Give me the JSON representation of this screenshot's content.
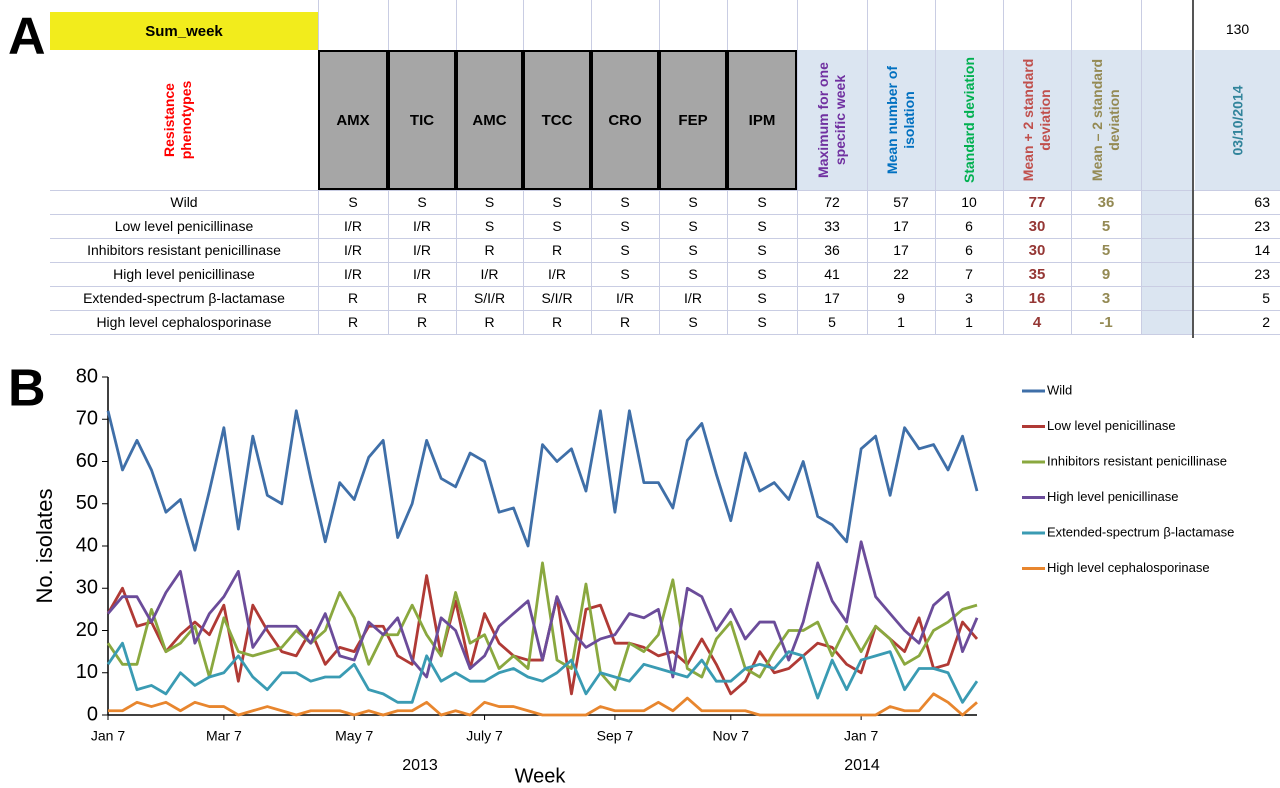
{
  "panels": [
    "A",
    "B"
  ],
  "table": {
    "corner_label": "Sum_week",
    "corner_value": 130,
    "row_header": "Resistance phenotypes",
    "antibiotics": [
      "AMX",
      "TIC",
      "AMC",
      "TCC",
      "CRO",
      "FEP",
      "IPM"
    ],
    "stats": [
      {
        "label": "Maximum for one specific week",
        "color": "#7030a0"
      },
      {
        "label": "Mean number of isolation",
        "color": "#0070c0"
      },
      {
        "label": "Standard deviation",
        "color": "#00b050"
      },
      {
        "label": "Mean + 2 standard deviation",
        "color": "#c0504d",
        "value_color": "#953735"
      },
      {
        "label": "Mean – 2 standard deviation",
        "color": "#948a54",
        "value_color": "#948a54"
      }
    ],
    "date_column": {
      "label": "03/10/2014",
      "color": "#31849b"
    },
    "rows": [
      {
        "phenotype": "Wild",
        "profile": [
          "S",
          "S",
          "S",
          "S",
          "S",
          "S",
          "S"
        ],
        "stats": [
          72,
          57,
          10,
          77,
          36
        ],
        "count": 63
      },
      {
        "phenotype": "Low level penicillinase",
        "profile": [
          "I/R",
          "I/R",
          "S",
          "S",
          "S",
          "S",
          "S"
        ],
        "stats": [
          33,
          17,
          6,
          30,
          5
        ],
        "count": 23
      },
      {
        "phenotype": "Inhibitors resistant penicillinase",
        "profile": [
          "I/R",
          "I/R",
          "R",
          "R",
          "S",
          "S",
          "S"
        ],
        "stats": [
          36,
          17,
          6,
          30,
          5
        ],
        "count": 14
      },
      {
        "phenotype": "High level penicillinase",
        "profile": [
          "I/R",
          "I/R",
          "I/R",
          "I/R",
          "S",
          "S",
          "S"
        ],
        "stats": [
          41,
          22,
          7,
          35,
          9
        ],
        "count": 23
      },
      {
        "phenotype": "Extended-spectrum β-lactamase",
        "profile": [
          "R",
          "R",
          "S/I/R",
          "S/I/R",
          "I/R",
          "I/R",
          "S"
        ],
        "stats": [
          17,
          9,
          3,
          16,
          3
        ],
        "count": 5
      },
      {
        "phenotype": "High level cephalosporinase",
        "profile": [
          "R",
          "R",
          "R",
          "R",
          "R",
          "S",
          "S"
        ],
        "stats": [
          5,
          1,
          1,
          4,
          -1
        ],
        "count": 2
      }
    ]
  },
  "chart_data": {
    "type": "line",
    "x_label": "Week",
    "y_label": "No. isolates",
    "year_labels": [
      "2013",
      "2014"
    ],
    "categories": [
      "Jan 7",
      null,
      null,
      null,
      null,
      null,
      null,
      null,
      "Mar 7",
      null,
      null,
      null,
      null,
      null,
      null,
      null,
      null,
      "May 7",
      null,
      null,
      null,
      null,
      null,
      null,
      null,
      null,
      "July 7",
      null,
      null,
      null,
      null,
      null,
      null,
      null,
      null,
      "Sep 7",
      null,
      null,
      null,
      null,
      null,
      null,
      null,
      "Nov 7",
      null,
      null,
      null,
      null,
      null,
      null,
      null,
      null,
      "Jan 7",
      null,
      null,
      null,
      null,
      null,
      null,
      null,
      null
    ],
    "ylim": [
      0,
      80
    ],
    "yticks": [
      0,
      10,
      20,
      30,
      40,
      50,
      60,
      70,
      80
    ],
    "legend": "right",
    "series": [
      {
        "name": "Wild",
        "color": "#3f6fa8",
        "values": [
          72,
          58,
          65,
          58,
          48,
          51,
          39,
          53,
          68,
          44,
          66,
          52,
          50,
          72,
          56,
          41,
          55,
          51,
          61,
          65,
          42,
          50,
          65,
          56,
          54,
          62,
          60,
          48,
          49,
          40,
          64,
          60,
          63,
          53,
          72,
          48,
          72,
          55,
          55,
          49,
          65,
          69,
          57,
          46,
          62,
          53,
          55,
          51,
          60,
          47,
          45,
          41,
          63,
          66,
          52,
          68,
          63,
          64,
          58,
          66,
          53
        ]
      },
      {
        "name": "Low level penicillinase",
        "color": "#b03a35",
        "values": [
          24,
          30,
          21,
          22,
          15,
          19,
          22,
          19,
          26,
          8,
          26,
          20,
          15,
          14,
          20,
          12,
          16,
          15,
          21,
          21,
          14,
          12,
          33,
          14,
          27,
          11,
          24,
          17,
          14,
          13,
          13,
          28,
          5,
          25,
          26,
          17,
          17,
          16,
          14,
          15,
          12,
          18,
          12,
          5,
          8,
          15,
          10,
          11,
          14,
          17,
          16,
          12,
          10,
          21,
          18,
          15,
          23,
          11,
          12,
          22,
          18
        ]
      },
      {
        "name": "Inhibitors resistant penicillinase",
        "color": "#8aa83f",
        "values": [
          17,
          12,
          12,
          25,
          15,
          17,
          21,
          9,
          23,
          15,
          14,
          15,
          16,
          20,
          17,
          20,
          29,
          23,
          12,
          19,
          19,
          26,
          19,
          14,
          29,
          17,
          19,
          11,
          14,
          11,
          36,
          13,
          11,
          31,
          10,
          6,
          17,
          15,
          19,
          32,
          11,
          9,
          18,
          22,
          11,
          9,
          15,
          20,
          20,
          22,
          14,
          21,
          15,
          21,
          18,
          12,
          14,
          20,
          22,
          25,
          26
        ]
      },
      {
        "name": "High level penicillinase",
        "color": "#6b4c9a",
        "values": [
          24,
          28,
          28,
          22,
          29,
          34,
          17,
          24,
          28,
          34,
          16,
          21,
          21,
          21,
          17,
          24,
          14,
          13,
          22,
          19,
          23,
          13,
          9,
          23,
          20,
          11,
          14,
          21,
          24,
          27,
          13,
          28,
          20,
          16,
          18,
          19,
          24,
          23,
          25,
          9,
          30,
          28,
          20,
          25,
          18,
          22,
          22,
          13,
          22,
          36,
          27,
          22,
          41,
          28,
          24,
          20,
          17,
          26,
          29,
          15,
          23
        ]
      },
      {
        "name": "Extended-spectrum β-lactamase",
        "color": "#3a9bb3",
        "values": [
          12,
          17,
          6,
          7,
          5,
          10,
          7,
          9,
          10,
          14,
          9,
          6,
          10,
          10,
          8,
          9,
          9,
          12,
          6,
          5,
          3,
          3,
          14,
          8,
          10,
          8,
          8,
          10,
          11,
          9,
          8,
          10,
          13,
          5,
          10,
          9,
          8,
          12,
          11,
          10,
          9,
          13,
          8,
          8,
          11,
          12,
          11,
          15,
          14,
          4,
          13,
          6,
          13,
          14,
          15,
          6,
          11,
          11,
          10,
          3,
          8
        ]
      },
      {
        "name": "High level cephalosporinase",
        "color": "#e8862e",
        "values": [
          1,
          1,
          3,
          2,
          3,
          1,
          3,
          2,
          2,
          0,
          1,
          2,
          1,
          0,
          1,
          1,
          1,
          0,
          1,
          0,
          1,
          1,
          3,
          0,
          1,
          0,
          3,
          2,
          2,
          1,
          0,
          0,
          0,
          0,
          2,
          1,
          1,
          1,
          3,
          1,
          4,
          1,
          1,
          1,
          1,
          0,
          0,
          0,
          0,
          0,
          0,
          0,
          0,
          0,
          2,
          1,
          1,
          5,
          3,
          0,
          3
        ]
      }
    ]
  }
}
